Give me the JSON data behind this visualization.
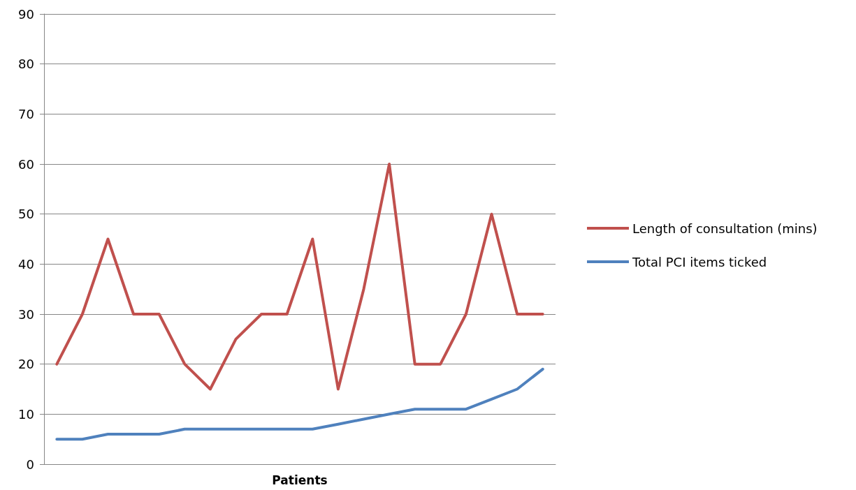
{
  "chart_data": {
    "type": "line",
    "xlabel": "Patients",
    "categories": [
      null,
      null,
      null,
      null,
      null,
      null,
      null,
      null,
      null,
      null,
      null,
      null,
      null,
      null,
      null,
      null,
      null,
      null,
      null,
      null
    ],
    "series": [
      {
        "name": "Length of consultation (mins)",
        "color": "#c0504d",
        "values": [
          20,
          30,
          45,
          30,
          30,
          20,
          15,
          25,
          30,
          30,
          45,
          15,
          35,
          60,
          20,
          20,
          30,
          50,
          30,
          30
        ]
      },
      {
        "name": "Total PCI items ticked",
        "color": "#4f81bd",
        "values": [
          5,
          5,
          6,
          6,
          6,
          7,
          7,
          7,
          7,
          7,
          7,
          8,
          9,
          10,
          11,
          11,
          11,
          13,
          15,
          19
        ]
      }
    ],
    "ylim": [
      0,
      90
    ],
    "yticks": [
      0,
      10,
      20,
      30,
      40,
      50,
      60,
      70,
      80,
      90
    ],
    "grid": "y",
    "legend": "right",
    "marker": "none",
    "line_style": "solid"
  }
}
